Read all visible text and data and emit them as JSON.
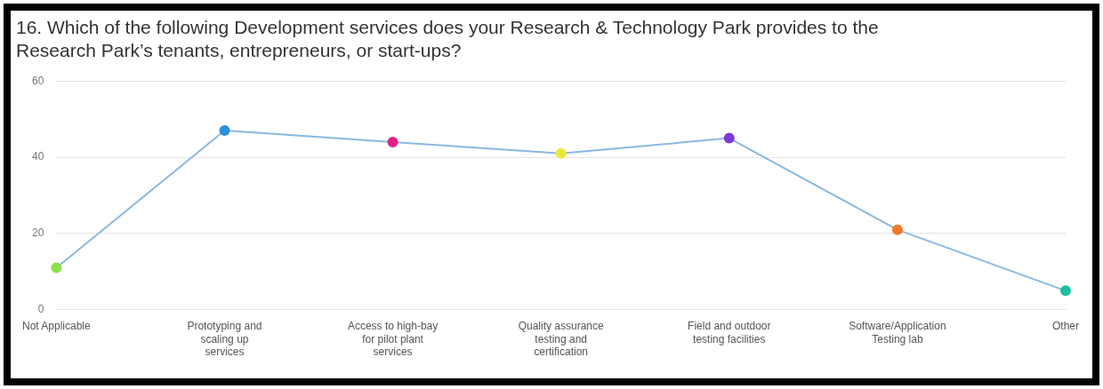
{
  "chart_data": {
    "type": "line",
    "title": "16. Which of the following Development services does your Research & Technology Park provides to the Research Park’s tenants, entrepreneurs, or start-ups?",
    "categories": [
      "Not Applicable",
      "Prototyping and scaling up services",
      "Access to high-bay for pilot plant services",
      "Quality assurance testing and certification",
      "Field and outdoor testing facilities",
      "Software/Application Testing lab",
      "Other"
    ],
    "series": [
      {
        "color": "#8ab8e0",
        "values": [
          11,
          47,
          44,
          41,
          45,
          21,
          5
        ],
        "colors": [
          "#8ee04a",
          "#2e8fd8",
          "#e0218a",
          "#ece83a",
          "#7e3ad6",
          "#f07a28",
          "#1fbf9a"
        ]
      }
    ],
    "ylim": [
      0,
      60
    ],
    "yticks": [
      0,
      20,
      40,
      60
    ],
    "grid": "y",
    "legend": false,
    "marker": "circle",
    "line_style": "solid"
  }
}
